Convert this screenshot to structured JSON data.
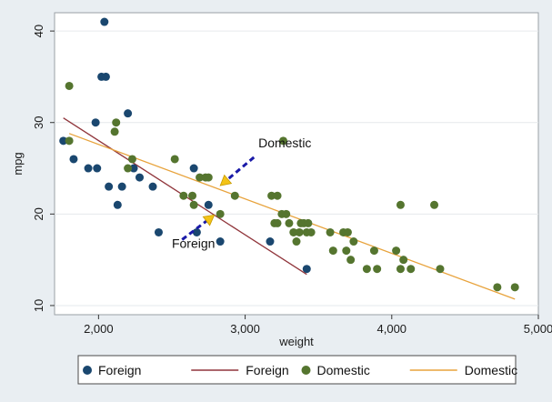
{
  "chart_data": {
    "type": "scatter",
    "xlabel": "weight",
    "ylabel": "mpg",
    "xlim": [
      1700,
      5000
    ],
    "ylim": [
      9,
      42
    ],
    "x_ticks": [
      2000,
      3000,
      4000,
      5000
    ],
    "x_tick_labels": [
      "2,000",
      "3,000",
      "4,000",
      "5,000"
    ],
    "y_ticks": [
      10,
      20,
      30,
      40
    ],
    "y_tick_labels": [
      "10",
      "20",
      "30",
      "40"
    ],
    "grid": "horizontal",
    "legend_position": "bottom",
    "series": [
      {
        "name": "Foreign",
        "kind": "scatter",
        "color": "#1a476f",
        "points": [
          [
            1760,
            28
          ],
          [
            1830,
            26
          ],
          [
            1930,
            25
          ],
          [
            1980,
            30
          ],
          [
            1990,
            25
          ],
          [
            2020,
            35
          ],
          [
            2040,
            41
          ],
          [
            2050,
            35
          ],
          [
            2070,
            23
          ],
          [
            2130,
            21
          ],
          [
            2160,
            23
          ],
          [
            2200,
            31
          ],
          [
            2240,
            25
          ],
          [
            2280,
            24
          ],
          [
            2370,
            23
          ],
          [
            2410,
            18
          ],
          [
            2650,
            25
          ],
          [
            2670,
            18
          ],
          [
            2750,
            21
          ],
          [
            2830,
            17
          ],
          [
            3170,
            17
          ],
          [
            3420,
            14
          ]
        ]
      },
      {
        "name": "Foreign",
        "kind": "line",
        "color": "#90353b",
        "points": [
          [
            1760,
            30.5
          ],
          [
            3420,
            13.4
          ]
        ]
      },
      {
        "name": "Domestic",
        "kind": "scatter",
        "color": "#55752f",
        "points": [
          [
            1800,
            34
          ],
          [
            1800,
            28
          ],
          [
            2110,
            29
          ],
          [
            2120,
            30
          ],
          [
            2200,
            25
          ],
          [
            2230,
            26
          ],
          [
            2520,
            26
          ],
          [
            2580,
            22
          ],
          [
            2640,
            22
          ],
          [
            2650,
            21
          ],
          [
            2690,
            24
          ],
          [
            2730,
            24
          ],
          [
            2750,
            24
          ],
          [
            2830,
            20
          ],
          [
            2930,
            22
          ],
          [
            3180,
            22
          ],
          [
            3200,
            19
          ],
          [
            3220,
            19
          ],
          [
            3220,
            22
          ],
          [
            3250,
            20
          ],
          [
            3260,
            28
          ],
          [
            3280,
            20
          ],
          [
            3300,
            19
          ],
          [
            3330,
            18
          ],
          [
            3350,
            17
          ],
          [
            3370,
            18
          ],
          [
            3380,
            19
          ],
          [
            3400,
            19
          ],
          [
            3420,
            18
          ],
          [
            3430,
            19
          ],
          [
            3450,
            18
          ],
          [
            3580,
            18
          ],
          [
            3600,
            16
          ],
          [
            3670,
            18
          ],
          [
            3690,
            16
          ],
          [
            3700,
            18
          ],
          [
            3720,
            15
          ],
          [
            3740,
            17
          ],
          [
            3830,
            14
          ],
          [
            3880,
            16
          ],
          [
            3900,
            14
          ],
          [
            4030,
            16
          ],
          [
            4060,
            14
          ],
          [
            4060,
            21
          ],
          [
            4080,
            15
          ],
          [
            4130,
            14
          ],
          [
            4290,
            21
          ],
          [
            4330,
            14
          ],
          [
            4720,
            12
          ],
          [
            4840,
            12
          ]
        ]
      },
      {
        "name": "Domestic",
        "kind": "line",
        "color": "#e8a33c",
        "points": [
          [
            1800,
            28.8
          ],
          [
            4840,
            10.7
          ]
        ]
      }
    ],
    "annotations": [
      {
        "text": "Domestic",
        "text_at": [
          3090,
          27.3
        ],
        "arrow_from": [
          3060,
          26.2
        ],
        "arrow_to": [
          2830,
          23.1
        ],
        "color": "#1a1aa8"
      },
      {
        "text": "Foreign",
        "text_at": [
          2500,
          16.3
        ],
        "arrow_from": [
          2570,
          17.2
        ],
        "arrow_to": [
          2790,
          19.9
        ],
        "color": "#1a1aa8"
      }
    ]
  },
  "legend": {
    "items": [
      {
        "label": "Foreign",
        "kind": "marker",
        "color": "#1a476f"
      },
      {
        "label": "Foreign",
        "kind": "line",
        "color": "#90353b"
      },
      {
        "label": "Domestic",
        "kind": "marker",
        "color": "#55752f"
      },
      {
        "label": "Domestic",
        "kind": "line",
        "color": "#e8a33c"
      }
    ]
  }
}
